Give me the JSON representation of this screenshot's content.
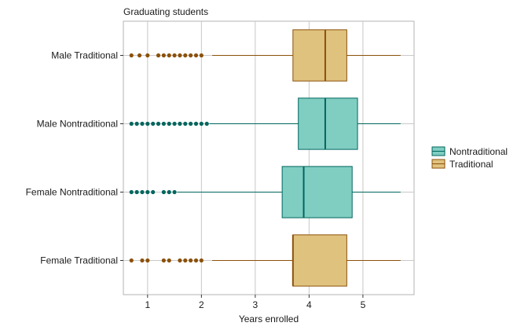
{
  "chart_data": {
    "type": "boxplot",
    "orientation": "horizontal",
    "title": "Graduating students",
    "xlabel": "Years enrolled",
    "ylabel": "",
    "xlim": [
      0.55,
      5.95
    ],
    "x_ticks": [
      1,
      2,
      3,
      4,
      5
    ],
    "grid": true,
    "legend_position": "right",
    "legend": [
      {
        "name": "Nontraditional",
        "fill": "#80cdc1",
        "stroke": "#01665e"
      },
      {
        "name": "Traditional",
        "fill": "#dfc27d",
        "stroke": "#8c510a"
      }
    ],
    "categories": [
      "Male Traditional",
      "Male Nontraditional",
      "Female Nontraditional",
      "Female Traditional"
    ],
    "boxes": [
      {
        "category": "Male Traditional",
        "group": "Traditional",
        "whisker_low": 2.2,
        "q1": 3.7,
        "median": 4.3,
        "q3": 4.7,
        "whisker_high": 5.7,
        "outliers": [
          0.7,
          0.85,
          1.0,
          1.2,
          1.3,
          1.4,
          1.5,
          1.6,
          1.7,
          1.8,
          1.9,
          2.0
        ]
      },
      {
        "category": "Male Nontraditional",
        "group": "Nontraditional",
        "whisker_low": 2.15,
        "q1": 3.8,
        "median": 4.3,
        "q3": 4.9,
        "whisker_high": 5.7,
        "outliers": [
          0.7,
          0.8,
          0.9,
          1.0,
          1.1,
          1.2,
          1.3,
          1.4,
          1.5,
          1.6,
          1.7,
          1.8,
          1.9,
          2.0,
          2.1
        ]
      },
      {
        "category": "Female Nontraditional",
        "group": "Nontraditional",
        "whisker_low": 1.55,
        "q1": 3.5,
        "median": 3.9,
        "q3": 4.8,
        "whisker_high": 5.7,
        "outliers": [
          0.7,
          0.8,
          0.9,
          1.0,
          1.1,
          1.3,
          1.4,
          1.5
        ]
      },
      {
        "category": "Female Traditional",
        "group": "Traditional",
        "whisker_low": 2.2,
        "q1": 3.7,
        "median": 3.7,
        "q3": 4.7,
        "whisker_high": 5.7,
        "outliers": [
          0.7,
          0.9,
          1.0,
          1.3,
          1.4,
          1.6,
          1.7,
          1.8,
          1.9,
          2.0
        ]
      }
    ]
  }
}
